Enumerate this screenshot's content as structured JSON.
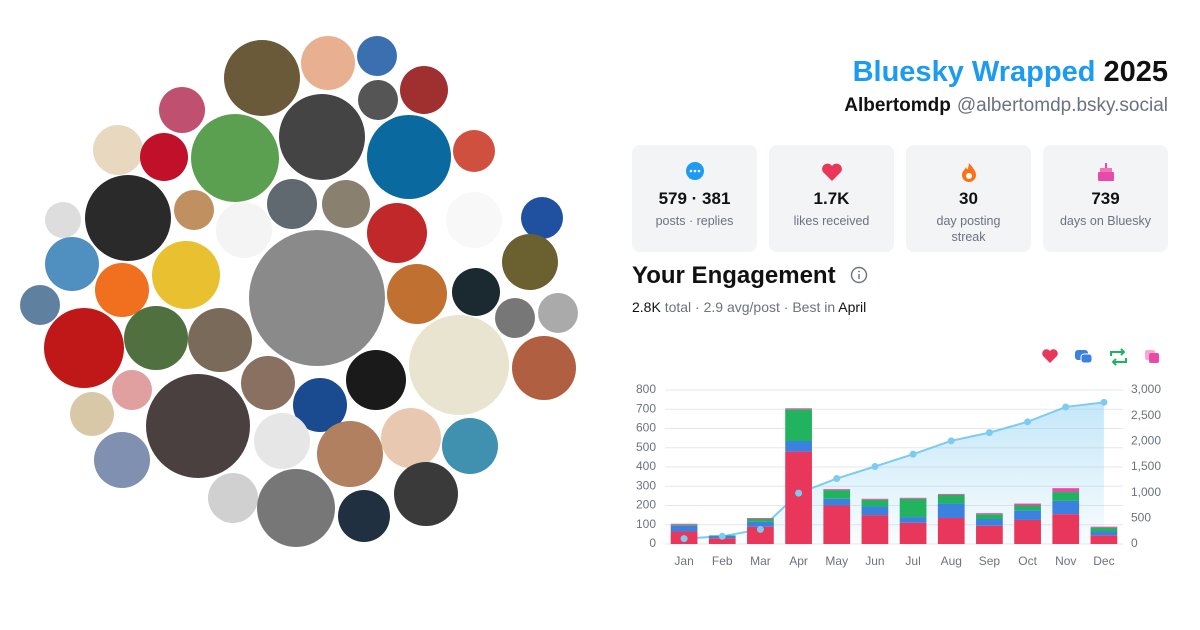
{
  "header": {
    "title": "Bluesky Wrapped",
    "year": "2025",
    "name": "Albertomdp",
    "handle": "@albertomdp.bsky.social"
  },
  "stats": [
    {
      "value": "579 · 381",
      "label": "posts · replies"
    },
    {
      "value": "1.7K",
      "label": "likes received"
    },
    {
      "value": "30",
      "label": "day posting streak"
    },
    {
      "value": "739",
      "label": "days on Bluesky"
    }
  ],
  "engagement": {
    "title": "Your Engagement",
    "total": "2.8K",
    "summary": "total · 2.9 avg/post · Best in",
    "best": "April"
  },
  "chart_data": {
    "type": "bar",
    "stacked": true,
    "categories": [
      "Jan",
      "Feb",
      "Mar",
      "Apr",
      "May",
      "Jun",
      "Jul",
      "Aug",
      "Sep",
      "Oct",
      "Nov",
      "Dec"
    ],
    "series": [
      {
        "color": "#e8375a",
        "values": [
          65,
          30,
          90,
          480,
          200,
          150,
          110,
          135,
          95,
          125,
          155,
          45
        ]
      },
      {
        "color": "#3b82e0",
        "values": [
          30,
          12,
          25,
          55,
          35,
          45,
          30,
          75,
          35,
          50,
          70,
          20
        ]
      },
      {
        "color": "#22b35e",
        "values": [
          5,
          3,
          15,
          165,
          45,
          35,
          95,
          45,
          25,
          25,
          45,
          20
        ]
      },
      {
        "color": "#e94aa8",
        "values": [
          5,
          0,
          5,
          5,
          5,
          5,
          5,
          5,
          5,
          10,
          20,
          5
        ]
      },
      {
        "type": "line",
        "axis": "y2",
        "color": "#7dcbf0",
        "values": [
          105,
          150,
          285,
          990,
          1275,
          1510,
          1750,
          2010,
          2170,
          2380,
          2670,
          2760
        ]
      }
    ],
    "ylim": [
      0,
      800
    ],
    "yticks": [
      0,
      100,
      200,
      300,
      400,
      500,
      600,
      700,
      800
    ],
    "y2lim": [
      0,
      3000
    ],
    "y2ticks": [
      0,
      500,
      {
        "value": 1000,
        "label": "1,000"
      },
      {
        "value": 1500,
        "label": "1,500"
      },
      {
        "value": 2000,
        "label": "2,000"
      },
      {
        "value": 2500,
        "label": "2,500"
      },
      {
        "value": 3000,
        "label": "3,000"
      }
    ],
    "grid": true
  }
}
